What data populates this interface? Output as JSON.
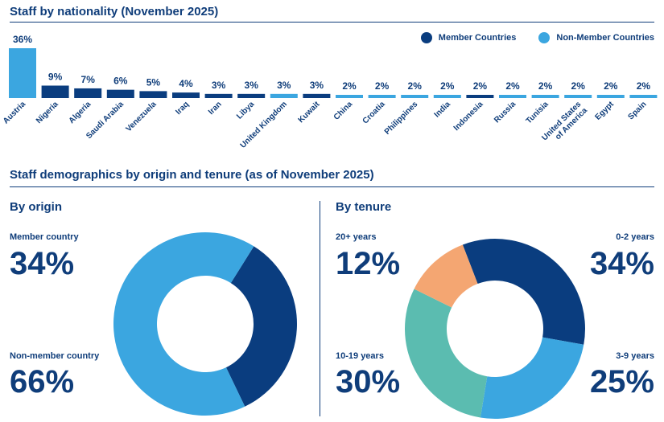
{
  "header": {
    "title": "Staff by nationality (November 2025)"
  },
  "legend": {
    "member_label": "Member Countries",
    "nonmember_label": "Non-Member Countries",
    "member_color": "#0a3d7f",
    "nonmember_color": "#3ba6e0"
  },
  "chart_data": [
    {
      "type": "bar",
      "title": "Staff by nationality (November 2025)",
      "categories": [
        "Austria",
        "Nigeria",
        "Algeria",
        "Saudi Arabia",
        "Venezuela",
        "Iraq",
        "Iran",
        "Libya",
        "United Kingdom",
        "Kuwait",
        "China",
        "Croatia",
        "Philippines",
        "India",
        "Indonesia",
        "Russia",
        "Tunisia",
        "United States of America",
        "Egypt",
        "Spain"
      ],
      "values": [
        36,
        9,
        7,
        6,
        5,
        4,
        3,
        3,
        3,
        3,
        2,
        2,
        2,
        2,
        2,
        2,
        2,
        2,
        2,
        2
      ],
      "value_labels": [
        "36%",
        "9%",
        "7%",
        "6%",
        "5%",
        "4%",
        "3%",
        "3%",
        "3%",
        "3%",
        "2%",
        "2%",
        "2%",
        "2%",
        "2%",
        "2%",
        "2%",
        "2%",
        "2%",
        "2%"
      ],
      "group": [
        "non-member",
        "member",
        "member",
        "member",
        "member",
        "member",
        "member",
        "member",
        "non-member",
        "member",
        "non-member",
        "non-member",
        "non-member",
        "non-member",
        "member",
        "non-member",
        "non-member",
        "non-member",
        "non-member",
        "non-member"
      ],
      "ylim": [
        0,
        36
      ],
      "xlabel": "",
      "ylabel": ""
    },
    {
      "type": "pie",
      "title": "By origin",
      "categories": [
        "Member country",
        "Non-member country"
      ],
      "values": [
        34,
        66
      ],
      "value_labels": [
        "34%",
        "66%"
      ],
      "colors": [
        "#0a3d7f",
        "#3ba6e0"
      ]
    },
    {
      "type": "pie",
      "title": "By tenure",
      "categories": [
        "0-2 years",
        "3-9 years",
        "10-19 years",
        "20+ years"
      ],
      "values": [
        34,
        25,
        30,
        12
      ],
      "value_labels": [
        "34%",
        "25%",
        "30%",
        "12%"
      ],
      "colors": [
        "#0a3d7f",
        "#3ba6e0",
        "#5bbcb0",
        "#f4a672"
      ]
    }
  ],
  "demographics": {
    "title": "Staff demographics by origin and tenure (as of November 2025)",
    "origin": {
      "heading": "By origin",
      "member_label": "Member country",
      "member_pct": "34%",
      "nonmember_label": "Non-member country",
      "nonmember_pct": "66%"
    },
    "tenure": {
      "heading": "By tenure",
      "t20_label": "20+ years",
      "t20_pct": "12%",
      "t02_label": "0-2 years",
      "t02_pct": "34%",
      "t1019_label": "10-19 years",
      "t1019_pct": "30%",
      "t39_label": "3-9 years",
      "t39_pct": "25%"
    }
  }
}
